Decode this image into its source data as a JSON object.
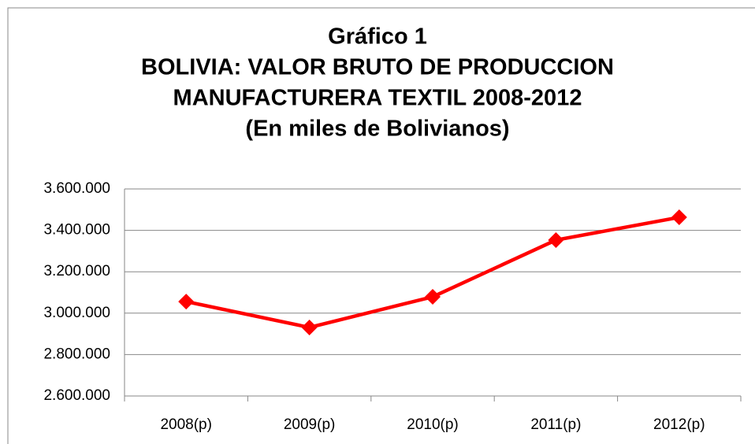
{
  "chart_data": {
    "type": "line",
    "title": [
      "Gráfico 1",
      "BOLIVIA: VALOR BRUTO DE PRODUCCION",
      "MANUFACTURERA TEXTIL 2008-2012",
      "(En miles de Bolivianos)"
    ],
    "categories": [
      "2008(p)",
      "2009(p)",
      "2010(p)",
      "2011(p)",
      "2012(p)"
    ],
    "series": [
      {
        "name": "Valor bruto de producción",
        "color": "#ff0000",
        "values": [
          3056000,
          2931000,
          3079000,
          3353000,
          3463000
        ]
      }
    ],
    "ylim": [
      2600000,
      3600000
    ],
    "yticks": [
      {
        "value": 2600000,
        "label": "2.600.000"
      },
      {
        "value": 2800000,
        "label": "2.800.000"
      },
      {
        "value": 3000000,
        "label": "3.000.000"
      },
      {
        "value": 3200000,
        "label": "3.200.000"
      },
      {
        "value": 3400000,
        "label": "3.400.000"
      },
      {
        "value": 3600000,
        "label": "3.600.000"
      }
    ],
    "grid": true
  }
}
